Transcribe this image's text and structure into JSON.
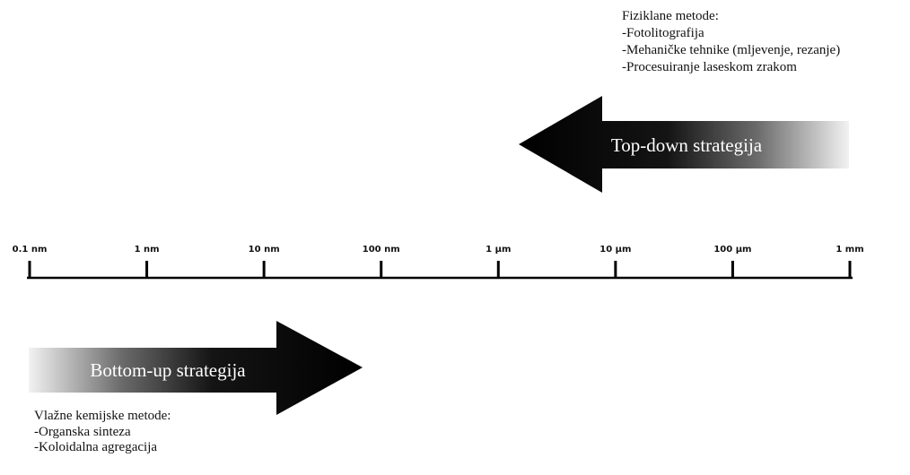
{
  "top_down": {
    "label": "Top-down strategija",
    "title": "Fiziklane metode:",
    "items": [
      "-Fotolitografija",
      "-Mehaničke tehnike (mljevenje, rezanje)",
      "-Procesuiranje  laseskom zrakom"
    ]
  },
  "bottom_up": {
    "label": "Bottom-up strategija",
    "title": "Vlažne kemijske metode:",
    "items": [
      "-Organska sinteza",
      "-Koloidalna agregacija"
    ]
  },
  "scale": {
    "ticks": [
      {
        "label": "0.1 nm"
      },
      {
        "label": "1 nm"
      },
      {
        "label": "10 nm"
      },
      {
        "label": "100 nm"
      },
      {
        "label": "1 µm"
      },
      {
        "label": "10 µm"
      },
      {
        "label": "100 µm"
      },
      {
        "label": "1 mm"
      }
    ]
  },
  "colors": {
    "arrow_dark": "#000000",
    "arrow_light": "#f2f2f2",
    "axis": "#000000"
  }
}
